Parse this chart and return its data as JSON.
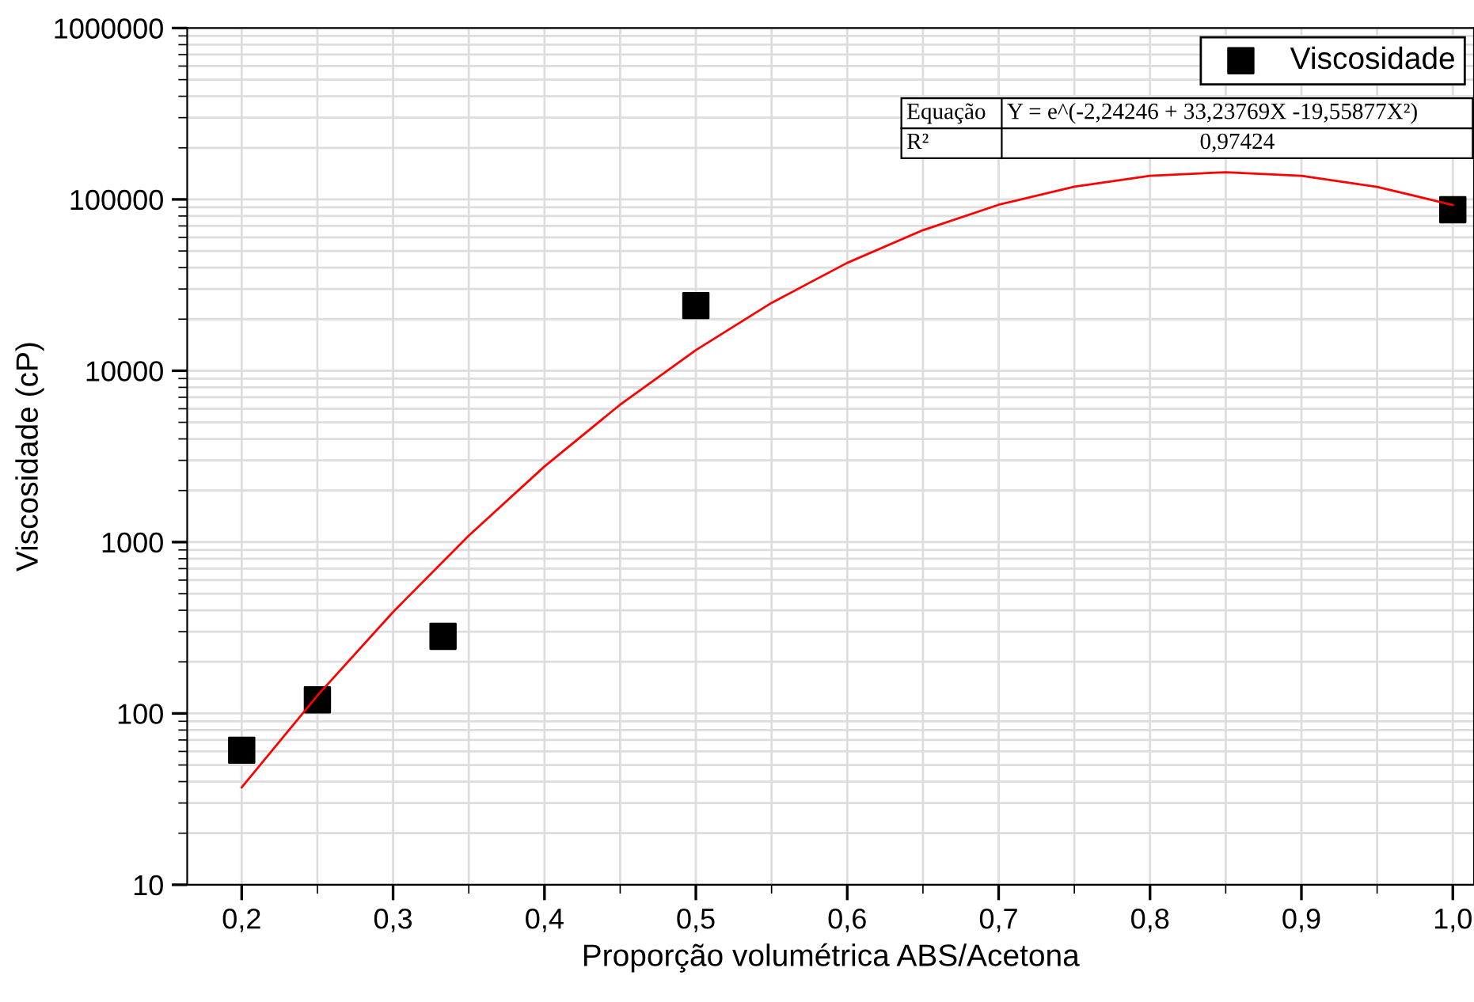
{
  "chart_data": {
    "type": "scatter",
    "xlabel": "Proporção volumétrica ABS/Acetona",
    "ylabel": "Viscosidade (cP)",
    "log": "y",
    "grid": true,
    "legend": "top right",
    "marker": "square",
    "xlim": [
      0.164,
      1.014
    ],
    "ylim": [
      10,
      1000000
    ],
    "xticks": [
      {
        "value": 0.2,
        "label": "0,2"
      },
      {
        "value": 0.3,
        "label": "0,3"
      },
      {
        "value": 0.4,
        "label": "0,4"
      },
      {
        "value": 0.5,
        "label": "0,5"
      },
      {
        "value": 0.6,
        "label": "0,6"
      },
      {
        "value": 0.7,
        "label": "0,7"
      },
      {
        "value": 0.8,
        "label": "0,8"
      },
      {
        "value": 0.9,
        "label": "0,9"
      },
      {
        "value": 1.0,
        "label": "1,0"
      }
    ],
    "yticks": [
      10,
      100,
      1000,
      10000,
      100000,
      1000000
    ],
    "annotations": [
      "Equação",
      "Y = e^(-2,24246 + 33,23769X -19,55877X²)",
      "R²",
      "0,97424"
    ],
    "series": [
      {
        "name": "Viscosidade",
        "color": "#000000",
        "x": [
          0.2,
          0.25,
          0.333,
          0.5,
          1.0
        ],
        "values": [
          61,
          120,
          282,
          24000,
          87000
        ]
      },
      {
        "type": "line",
        "color": "#ff0000",
        "marker": "none",
        "line_style": "solid",
        "x": [
          0.2,
          0.25,
          0.3,
          0.35,
          0.4,
          0.45,
          0.5,
          0.55,
          0.6,
          0.65,
          0.7,
          0.75,
          0.8,
          0.85,
          0.9,
          0.95,
          1.0
        ],
        "values": [
          37,
          127,
          391,
          1091,
          2762,
          6341,
          13190,
          24900,
          42620,
          66130,
          93050,
          118700,
          137400,
          144200,
          137200,
          118400,
          92710
        ]
      }
    ]
  }
}
